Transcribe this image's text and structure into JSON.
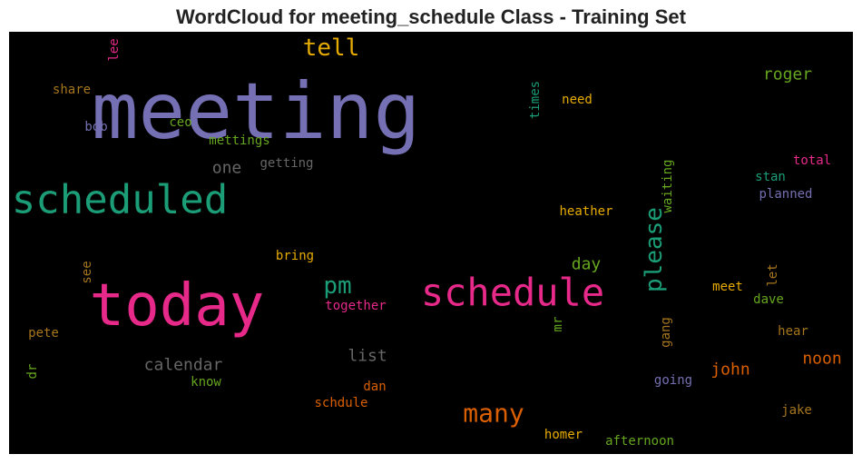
{
  "chart_data": {
    "type": "wordcloud",
    "title": "WordCloud for meeting_schedule Class - Training Set",
    "background": "#000000",
    "colormap": "Dark2",
    "words": [
      {
        "text": "meeting",
        "rank": 1.0,
        "color": "#7570b3",
        "rotate": false
      },
      {
        "text": "today",
        "rank": 0.97,
        "color": "#e7298a",
        "rotate": false
      },
      {
        "text": "scheduled",
        "rank": 0.62,
        "color": "#1b9e77",
        "rotate": false
      },
      {
        "text": "schedule",
        "rank": 0.6,
        "color": "#e7298a",
        "rotate": false
      },
      {
        "text": "please",
        "rank": 0.35,
        "color": "#1b9e77",
        "rotate": true
      },
      {
        "text": "many",
        "rank": 0.32,
        "color": "#d95f02",
        "rotate": false
      },
      {
        "text": "tell",
        "rank": 0.3,
        "color": "#e6ab02",
        "rotate": false
      },
      {
        "text": "pm",
        "rank": 0.28,
        "color": "#1b9e77",
        "rotate": false
      },
      {
        "text": "list",
        "rank": 0.2,
        "color": "#666666",
        "rotate": false
      },
      {
        "text": "calendar",
        "rank": 0.2,
        "color": "#666666",
        "rotate": false
      },
      {
        "text": "roger",
        "rank": 0.2,
        "color": "#66a61e",
        "rotate": false
      },
      {
        "text": "john",
        "rank": 0.2,
        "color": "#d95f02",
        "rotate": false
      },
      {
        "text": "noon",
        "rank": 0.2,
        "color": "#d95f02",
        "rotate": false
      },
      {
        "text": "day",
        "rank": 0.18,
        "color": "#66a61e",
        "rotate": false
      },
      {
        "text": "one",
        "rank": 0.18,
        "color": "#666666",
        "rotate": false
      },
      {
        "text": "share",
        "rank": 0.12,
        "color": "#a6761d",
        "rotate": false
      },
      {
        "text": "bob",
        "rank": 0.12,
        "color": "#7570b3",
        "rotate": false
      },
      {
        "text": "ceo",
        "rank": 0.12,
        "color": "#66a61e",
        "rotate": false
      },
      {
        "text": "mettings",
        "rank": 0.12,
        "color": "#66a61e",
        "rotate": false
      },
      {
        "text": "getting",
        "rank": 0.12,
        "color": "#666666",
        "rotate": false
      },
      {
        "text": "lee",
        "rank": 0.12,
        "color": "#e7298a",
        "rotate": true
      },
      {
        "text": "times",
        "rank": 0.12,
        "color": "#1b9e77",
        "rotate": true
      },
      {
        "text": "need",
        "rank": 0.12,
        "color": "#e6ab02",
        "rotate": false
      },
      {
        "text": "waiting",
        "rank": 0.12,
        "color": "#66a61e",
        "rotate": true
      },
      {
        "text": "total",
        "rank": 0.12,
        "color": "#e7298a",
        "rotate": false
      },
      {
        "text": "stan",
        "rank": 0.12,
        "color": "#1b9e77",
        "rotate": false
      },
      {
        "text": "planned",
        "rank": 0.12,
        "color": "#7570b3",
        "rotate": false
      },
      {
        "text": "heather",
        "rank": 0.12,
        "color": "#e6ab02",
        "rotate": false
      },
      {
        "text": "bring",
        "rank": 0.12,
        "color": "#e6ab02",
        "rotate": false
      },
      {
        "text": "see",
        "rank": 0.12,
        "color": "#a6761d",
        "rotate": true
      },
      {
        "text": "together",
        "rank": 0.12,
        "color": "#e7298a",
        "rotate": false
      },
      {
        "text": "meet",
        "rank": 0.12,
        "color": "#e6ab02",
        "rotate": false
      },
      {
        "text": "let",
        "rank": 0.12,
        "color": "#a6761d",
        "rotate": true
      },
      {
        "text": "dave",
        "rank": 0.12,
        "color": "#66a61e",
        "rotate": false
      },
      {
        "text": "pete",
        "rank": 0.12,
        "color": "#a6761d",
        "rotate": false
      },
      {
        "text": "mr",
        "rank": 0.12,
        "color": "#66a61e",
        "rotate": true
      },
      {
        "text": "gang",
        "rank": 0.12,
        "color": "#a6761d",
        "rotate": true
      },
      {
        "text": "hear",
        "rank": 0.12,
        "color": "#a6761d",
        "rotate": false
      },
      {
        "text": "dr",
        "rank": 0.12,
        "color": "#66a61e",
        "rotate": true
      },
      {
        "text": "know",
        "rank": 0.12,
        "color": "#66a61e",
        "rotate": false
      },
      {
        "text": "dan",
        "rank": 0.12,
        "color": "#d95f02",
        "rotate": false
      },
      {
        "text": "going",
        "rank": 0.12,
        "color": "#7570b3",
        "rotate": false
      },
      {
        "text": "schdule",
        "rank": 0.12,
        "color": "#d95f02",
        "rotate": false
      },
      {
        "text": "jake",
        "rank": 0.12,
        "color": "#a6761d",
        "rotate": false
      },
      {
        "text": "homer",
        "rank": 0.12,
        "color": "#e6ab02",
        "rotate": false
      },
      {
        "text": "afternoon",
        "rank": 0.12,
        "color": "#66a61e",
        "rotate": false
      }
    ]
  }
}
